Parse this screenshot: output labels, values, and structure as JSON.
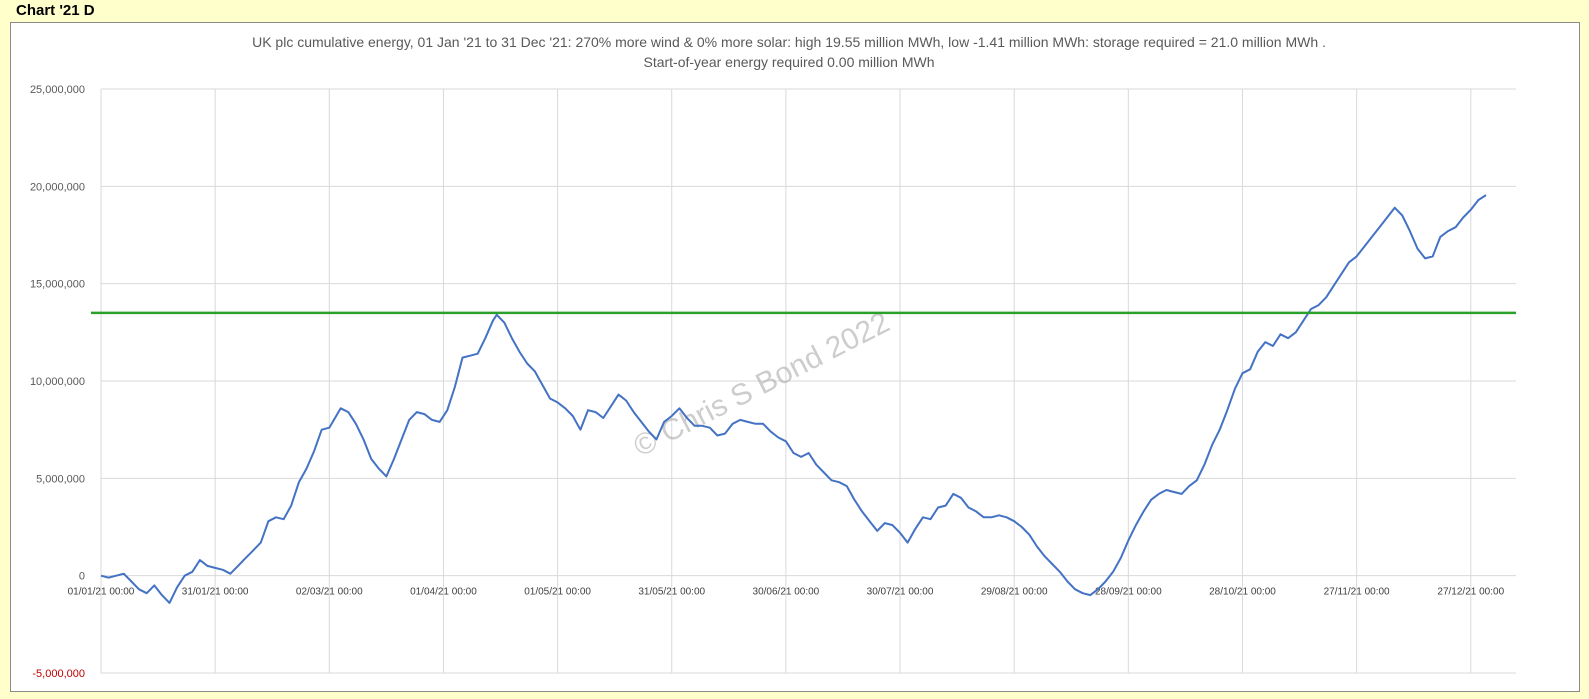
{
  "sheet_title": "Chart '21 D",
  "watermark": "© Chris S Bond  2022",
  "chart_data": {
    "type": "line",
    "title": "UK plc cumulative energy, 01 Jan '21 to 31 Dec '21: 270% more wind & 0% more solar: high 19.55 million MWh, low -1.41 million MWh: storage required = 21.0 million MWh .",
    "subtitle": "Start-of-year energy required 0.00 million MWh",
    "xlabel": "",
    "ylabel": "",
    "ylim": [
      -5000000,
      25000000
    ],
    "yticks": [
      {
        "value": 25000000,
        "label": "25,000,000"
      },
      {
        "value": 20000000,
        "label": "20,000,000"
      },
      {
        "value": 15000000,
        "label": "15,000,000"
      },
      {
        "value": 10000000,
        "label": "10,000,000"
      },
      {
        "value": 5000000,
        "label": "5,000,000"
      },
      {
        "value": 0,
        "label": "0"
      },
      {
        "value": -5000000,
        "label": "-5,000,000"
      }
    ],
    "xlim": [
      "01/01/21",
      "31/12/21"
    ],
    "xticks": [
      {
        "date": "01/01/21",
        "label": "01/01/21 00:00"
      },
      {
        "date": "31/01/21",
        "label": "31/01/21 00:00"
      },
      {
        "date": "02/03/21",
        "label": "02/03/21 00:00"
      },
      {
        "date": "01/04/21",
        "label": "01/04/21 00:00"
      },
      {
        "date": "01/05/21",
        "label": "01/05/21 00:00"
      },
      {
        "date": "31/05/21",
        "label": "31/05/21 00:00"
      },
      {
        "date": "30/06/21",
        "label": "30/06/21 00:00"
      },
      {
        "date": "30/07/21",
        "label": "30/07/21 00:00"
      },
      {
        "date": "29/08/21",
        "label": "29/08/21 00:00"
      },
      {
        "date": "28/09/21",
        "label": "28/09/21 00:00"
      },
      {
        "date": "28/10/21",
        "label": "28/10/21 00:00"
      },
      {
        "date": "27/11/21",
        "label": "27/11/21 00:00"
      },
      {
        "date": "27/12/21",
        "label": "27/12/21 00:00"
      }
    ],
    "grid": true,
    "horizontal_line": {
      "value": 13500000,
      "color": "#2ca02c"
    },
    "series": [
      {
        "color": "#4472c4",
        "points": [
          [
            "01/01/21",
            0
          ],
          [
            "03/01/21",
            -100000
          ],
          [
            "05/01/21",
            0
          ],
          [
            "07/01/21",
            100000
          ],
          [
            "09/01/21",
            -300000
          ],
          [
            "11/01/21",
            -700000
          ],
          [
            "13/01/21",
            -900000
          ],
          [
            "15/01/21",
            -500000
          ],
          [
            "17/01/21",
            -1000000
          ],
          [
            "19/01/21",
            -1400000
          ],
          [
            "21/01/21",
            -600000
          ],
          [
            "23/01/21",
            0
          ],
          [
            "25/01/21",
            200000
          ],
          [
            "27/01/21",
            800000
          ],
          [
            "29/01/21",
            500000
          ],
          [
            "31/01/21",
            400000
          ],
          [
            "02/02/21",
            300000
          ],
          [
            "04/02/21",
            100000
          ],
          [
            "06/02/21",
            500000
          ],
          [
            "08/02/21",
            900000
          ],
          [
            "10/02/21",
            1300000
          ],
          [
            "12/02/21",
            1700000
          ],
          [
            "14/02/21",
            2800000
          ],
          [
            "16/02/21",
            3000000
          ],
          [
            "18/02/21",
            2900000
          ],
          [
            "20/02/21",
            3600000
          ],
          [
            "22/02/21",
            4800000
          ],
          [
            "24/02/21",
            5500000
          ],
          [
            "26/02/21",
            6400000
          ],
          [
            "28/02/21",
            7500000
          ],
          [
            "02/03/21",
            7600000
          ],
          [
            "05/03/21",
            8600000
          ],
          [
            "07/03/21",
            8400000
          ],
          [
            "09/03/21",
            7800000
          ],
          [
            "11/03/21",
            7000000
          ],
          [
            "13/03/21",
            6000000
          ],
          [
            "15/03/21",
            5500000
          ],
          [
            "17/03/21",
            5100000
          ],
          [
            "19/03/21",
            6000000
          ],
          [
            "21/03/21",
            7000000
          ],
          [
            "23/03/21",
            8000000
          ],
          [
            "25/03/21",
            8400000
          ],
          [
            "27/03/21",
            8300000
          ],
          [
            "29/03/21",
            8000000
          ],
          [
            "31/03/21",
            7900000
          ],
          [
            "02/04/21",
            8500000
          ],
          [
            "04/04/21",
            9700000
          ],
          [
            "06/04/21",
            11200000
          ],
          [
            "08/04/21",
            11300000
          ],
          [
            "10/04/21",
            11400000
          ],
          [
            "12/04/21",
            12200000
          ],
          [
            "14/04/21",
            13100000
          ],
          [
            "15/04/21",
            13400000
          ],
          [
            "17/04/21",
            13000000
          ],
          [
            "19/04/21",
            12200000
          ],
          [
            "21/04/21",
            11500000
          ],
          [
            "23/04/21",
            10900000
          ],
          [
            "25/04/21",
            10500000
          ],
          [
            "27/04/21",
            9800000
          ],
          [
            "29/04/21",
            9100000
          ],
          [
            "01/05/21",
            8900000
          ],
          [
            "03/05/21",
            8600000
          ],
          [
            "05/05/21",
            8200000
          ],
          [
            "07/05/21",
            7500000
          ],
          [
            "09/05/21",
            8500000
          ],
          [
            "11/05/21",
            8400000
          ],
          [
            "13/05/21",
            8100000
          ],
          [
            "15/05/21",
            8700000
          ],
          [
            "17/05/21",
            9300000
          ],
          [
            "19/05/21",
            9000000
          ],
          [
            "21/05/21",
            8400000
          ],
          [
            "23/05/21",
            7900000
          ],
          [
            "25/05/21",
            7400000
          ],
          [
            "27/05/21",
            7000000
          ],
          [
            "29/05/21",
            7900000
          ],
          [
            "31/05/21",
            8200000
          ],
          [
            "02/06/21",
            8600000
          ],
          [
            "04/06/21",
            8100000
          ],
          [
            "06/06/21",
            7700000
          ],
          [
            "08/06/21",
            7700000
          ],
          [
            "10/06/21",
            7600000
          ],
          [
            "12/06/21",
            7200000
          ],
          [
            "14/06/21",
            7300000
          ],
          [
            "16/06/21",
            7800000
          ],
          [
            "18/06/21",
            8000000
          ],
          [
            "20/06/21",
            7900000
          ],
          [
            "22/06/21",
            7800000
          ],
          [
            "24/06/21",
            7800000
          ],
          [
            "26/06/21",
            7400000
          ],
          [
            "28/06/21",
            7100000
          ],
          [
            "30/06/21",
            6900000
          ],
          [
            "02/07/21",
            6300000
          ],
          [
            "04/07/21",
            6100000
          ],
          [
            "06/07/21",
            6300000
          ],
          [
            "08/07/21",
            5700000
          ],
          [
            "10/07/21",
            5300000
          ],
          [
            "12/07/21",
            4900000
          ],
          [
            "14/07/21",
            4800000
          ],
          [
            "16/07/21",
            4600000
          ],
          [
            "18/07/21",
            3900000
          ],
          [
            "20/07/21",
            3300000
          ],
          [
            "22/07/21",
            2800000
          ],
          [
            "24/07/21",
            2300000
          ],
          [
            "26/07/21",
            2700000
          ],
          [
            "28/07/21",
            2600000
          ],
          [
            "30/07/21",
            2200000
          ],
          [
            "01/08/21",
            1700000
          ],
          [
            "03/08/21",
            2400000
          ],
          [
            "05/08/21",
            3000000
          ],
          [
            "07/08/21",
            2900000
          ],
          [
            "09/08/21",
            3500000
          ],
          [
            "11/08/21",
            3600000
          ],
          [
            "13/08/21",
            4200000
          ],
          [
            "15/08/21",
            4000000
          ],
          [
            "17/08/21",
            3500000
          ],
          [
            "19/08/21",
            3300000
          ],
          [
            "21/08/21",
            3000000
          ],
          [
            "23/08/21",
            3000000
          ],
          [
            "25/08/21",
            3100000
          ],
          [
            "27/08/21",
            3000000
          ],
          [
            "29/08/21",
            2800000
          ],
          [
            "31/08/21",
            2500000
          ],
          [
            "02/09/21",
            2100000
          ],
          [
            "04/09/21",
            1500000
          ],
          [
            "06/09/21",
            1000000
          ],
          [
            "08/09/21",
            600000
          ],
          [
            "10/09/21",
            200000
          ],
          [
            "12/09/21",
            -300000
          ],
          [
            "14/09/21",
            -700000
          ],
          [
            "16/09/21",
            -900000
          ],
          [
            "18/09/21",
            -1000000
          ],
          [
            "20/09/21",
            -700000
          ],
          [
            "22/09/21",
            -300000
          ],
          [
            "24/09/21",
            200000
          ],
          [
            "26/09/21",
            900000
          ],
          [
            "28/09/21",
            1800000
          ],
          [
            "30/09/21",
            2600000
          ],
          [
            "02/10/21",
            3300000
          ],
          [
            "04/10/21",
            3900000
          ],
          [
            "06/10/21",
            4200000
          ],
          [
            "08/10/21",
            4400000
          ],
          [
            "10/10/21",
            4300000
          ],
          [
            "12/10/21",
            4200000
          ],
          [
            "14/10/21",
            4600000
          ],
          [
            "16/10/21",
            4900000
          ],
          [
            "18/10/21",
            5700000
          ],
          [
            "20/10/21",
            6700000
          ],
          [
            "22/10/21",
            7500000
          ],
          [
            "24/10/21",
            8500000
          ],
          [
            "26/10/21",
            9600000
          ],
          [
            "28/10/21",
            10400000
          ],
          [
            "30/10/21",
            10600000
          ],
          [
            "01/11/21",
            11500000
          ],
          [
            "03/11/21",
            12000000
          ],
          [
            "05/11/21",
            11800000
          ],
          [
            "07/11/21",
            12400000
          ],
          [
            "09/11/21",
            12200000
          ],
          [
            "11/11/21",
            12500000
          ],
          [
            "13/11/21",
            13100000
          ],
          [
            "15/11/21",
            13700000
          ],
          [
            "17/11/21",
            13900000
          ],
          [
            "19/11/21",
            14300000
          ],
          [
            "21/11/21",
            14900000
          ],
          [
            "23/11/21",
            15500000
          ],
          [
            "25/11/21",
            16100000
          ],
          [
            "27/11/21",
            16400000
          ],
          [
            "29/11/21",
            16900000
          ],
          [
            "01/12/21",
            17400000
          ],
          [
            "03/12/21",
            17900000
          ],
          [
            "05/12/21",
            18400000
          ],
          [
            "07/12/21",
            18900000
          ],
          [
            "09/12/21",
            18500000
          ],
          [
            "11/12/21",
            17700000
          ],
          [
            "13/12/21",
            16800000
          ],
          [
            "15/12/21",
            16300000
          ],
          [
            "17/12/21",
            16400000
          ],
          [
            "19/12/21",
            17400000
          ],
          [
            "21/12/21",
            17700000
          ],
          [
            "23/12/21",
            17900000
          ],
          [
            "25/12/21",
            18400000
          ],
          [
            "27/12/21",
            18800000
          ],
          [
            "29/12/21",
            19300000
          ],
          [
            "31/12/21",
            19550000
          ]
        ]
      }
    ]
  }
}
